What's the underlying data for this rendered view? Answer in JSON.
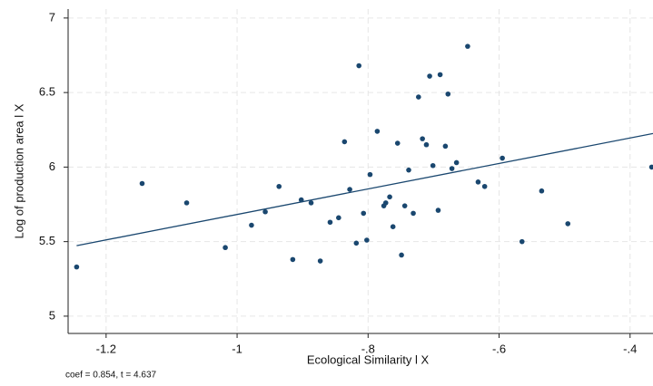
{
  "chart_data": {
    "type": "scatter",
    "x_label": "Ecological Similarity l X",
    "y_label": "Log of production area l X",
    "note": "coef = 0.854, t = 4.637",
    "xlim": [
      -1.258,
      -0.365
    ],
    "ylim": [
      4.884,
      7.06
    ],
    "xticks": [
      -1.2,
      -1,
      {
        "value": -0.8,
        "label": "-.8"
      },
      {
        "value": -0.6,
        "label": "-.6"
      },
      {
        "value": -0.4,
        "label": "-.4"
      }
    ],
    "yticks": [
      5,
      5.5,
      6,
      6.5,
      7
    ],
    "grid": true,
    "series": [
      {
        "type": "scatter",
        "color": "#1a476f",
        "x": [
          -1.245,
          -1.145,
          -1.077,
          -1.018,
          -0.978,
          -0.957,
          -0.936,
          -0.915,
          -0.902,
          -0.887,
          -0.873,
          -0.858,
          -0.845,
          -0.836,
          -0.828,
          -0.818,
          -0.814,
          -0.807,
          -0.802,
          -0.797,
          -0.786,
          -0.776,
          -0.773,
          -0.767,
          -0.762,
          -0.755,
          -0.749,
          -0.744,
          -0.738,
          -0.731,
          -0.723,
          -0.717,
          -0.711,
          -0.706,
          -0.701,
          -0.693,
          -0.69,
          -0.682,
          -0.678,
          -0.672,
          -0.665,
          -0.648,
          -0.632,
          -0.622,
          -0.595,
          -0.565,
          -0.535,
          -0.495,
          -0.367
        ],
        "values": [
          5.33,
          5.89,
          5.76,
          5.46,
          5.61,
          5.7,
          5.87,
          5.38,
          5.78,
          5.76,
          5.37,
          5.63,
          5.66,
          6.17,
          5.85,
          5.49,
          6.68,
          5.69,
          5.51,
          5.95,
          6.24,
          5.74,
          5.76,
          5.8,
          5.6,
          6.16,
          5.41,
          5.74,
          5.98,
          5.69,
          6.47,
          6.19,
          6.15,
          6.61,
          6.01,
          5.71,
          6.62,
          6.14,
          6.49,
          5.99,
          6.03,
          6.81,
          5.9,
          5.87,
          6.06,
          5.5,
          5.84,
          5.62,
          6.0
        ]
      },
      {
        "type": "line",
        "color": "#1a476f",
        "x": [
          -1.245,
          -0.365
        ],
        "values": [
          5.473,
          6.225
        ]
      }
    ]
  }
}
